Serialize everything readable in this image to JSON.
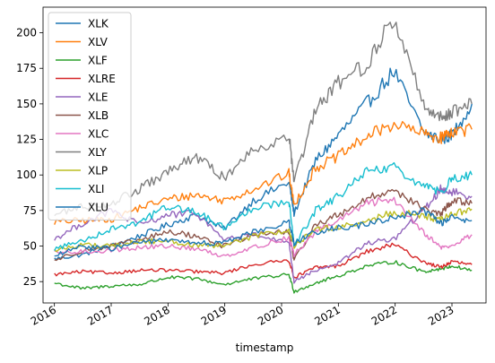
{
  "chart_data": {
    "type": "line",
    "title": "",
    "xlabel": "timestamp",
    "ylabel": "",
    "xlim": [
      2015.8,
      2023.6
    ],
    "ylim": [
      10,
      218
    ],
    "yticks": [
      25,
      50,
      75,
      100,
      125,
      150,
      175,
      200
    ],
    "xticks": [
      {
        "value": 2016,
        "label": "2016"
      },
      {
        "value": 2017,
        "label": "2017"
      },
      {
        "value": 2018,
        "label": "2018"
      },
      {
        "value": 2019,
        "label": "2019"
      },
      {
        "value": 2020,
        "label": "2020"
      },
      {
        "value": 2021,
        "label": "2021"
      },
      {
        "value": 2022,
        "label": "2022"
      },
      {
        "value": 2023,
        "label": "2023"
      }
    ],
    "legend_position": "upper-left",
    "grid": false,
    "series": [
      {
        "name": "XLK",
        "color": "#1f77b4",
        "x": [
          2016.0,
          2016.5,
          2017.0,
          2017.5,
          2018.0,
          2018.5,
          2018.98,
          2019.5,
          2020.13,
          2020.22,
          2020.6,
          2021.0,
          2021.5,
          2021.98,
          2022.5,
          2022.8,
          2023.0,
          2023.35
        ],
        "y": [
          41,
          44,
          50,
          57,
          65,
          72,
          62,
          82,
          95,
          73,
          110,
          128,
          150,
          173,
          130,
          125,
          128,
          150
        ]
      },
      {
        "name": "XLV",
        "color": "#ff7f0e",
        "x": [
          2016.0,
          2016.5,
          2017.0,
          2017.5,
          2018.0,
          2018.5,
          2018.98,
          2019.5,
          2020.13,
          2020.22,
          2020.6,
          2021.0,
          2021.5,
          2021.98,
          2022.5,
          2022.8,
          2023.0,
          2023.35
        ],
        "y": [
          67,
          68,
          69,
          77,
          83,
          86,
          82,
          90,
          101,
          79,
          105,
          113,
          127,
          136,
          129,
          126,
          131,
          132
        ]
      },
      {
        "name": "XLF",
        "color": "#2ca02c",
        "x": [
          2016.0,
          2016.5,
          2017.0,
          2017.5,
          2018.0,
          2018.5,
          2018.98,
          2019.5,
          2020.13,
          2020.22,
          2020.6,
          2021.0,
          2021.5,
          2021.98,
          2022.5,
          2022.8,
          2023.0,
          2023.35
        ],
        "y": [
          24,
          20,
          22,
          23,
          28,
          27,
          23,
          27,
          30,
          18,
          24,
          29,
          36,
          39,
          32,
          34,
          36,
          33
        ]
      },
      {
        "name": "XLRE",
        "color": "#d62728",
        "x": [
          2016.0,
          2016.5,
          2017.0,
          2017.5,
          2018.0,
          2018.5,
          2018.98,
          2019.5,
          2020.13,
          2020.22,
          2020.6,
          2021.0,
          2021.5,
          2021.98,
          2022.5,
          2022.8,
          2023.0,
          2023.35
        ],
        "y": [
          30,
          32,
          31,
          33,
          33,
          32,
          31,
          37,
          40,
          28,
          35,
          36,
          46,
          51,
          39,
          35,
          39,
          37
        ]
      },
      {
        "name": "XLE",
        "color": "#9467bd",
        "x": [
          2016.0,
          2016.5,
          2017.0,
          2017.5,
          2018.0,
          2018.5,
          2018.98,
          2019.5,
          2020.13,
          2020.22,
          2020.6,
          2021.0,
          2021.5,
          2021.98,
          2022.5,
          2022.8,
          2023.0,
          2023.35
        ],
        "y": [
          55,
          66,
          75,
          65,
          72,
          73,
          55,
          58,
          52,
          25,
          33,
          38,
          52,
          55,
          75,
          90,
          88,
          85
        ]
      },
      {
        "name": "XLB",
        "color": "#8c564b",
        "x": [
          2016.0,
          2016.5,
          2017.0,
          2017.5,
          2018.0,
          2018.5,
          2018.98,
          2019.5,
          2020.13,
          2020.22,
          2020.6,
          2021.0,
          2021.5,
          2021.98,
          2022.5,
          2022.8,
          2023.0,
          2023.35
        ],
        "y": [
          40,
          47,
          50,
          54,
          60,
          57,
          50,
          58,
          60,
          40,
          65,
          72,
          83,
          90,
          76,
          72,
          82,
          80
        ]
      },
      {
        "name": "XLC",
        "color": "#e377c2",
        "x": [
          2016.0,
          2016.5,
          2017.0,
          2017.5,
          2018.0,
          2018.5,
          2018.98,
          2019.5,
          2020.13,
          2020.22,
          2020.6,
          2021.0,
          2021.5,
          2021.98,
          2022.5,
          2022.8,
          2023.0,
          2023.35
        ],
        "y": [
          45,
          46,
          47,
          49,
          50,
          48,
          43,
          49,
          56,
          44,
          60,
          68,
          80,
          83,
          60,
          49,
          50,
          58
        ]
      },
      {
        "name": "XLY",
        "color": "#7f7f7f",
        "x": [
          2016.0,
          2016.5,
          2017.0,
          2017.5,
          2018.0,
          2018.5,
          2018.98,
          2019.5,
          2020.13,
          2020.22,
          2020.6,
          2021.0,
          2021.5,
          2021.98,
          2022.5,
          2022.8,
          2023.0,
          2023.35
        ],
        "y": [
          72,
          78,
          80,
          90,
          102,
          113,
          98,
          118,
          128,
          95,
          145,
          165,
          178,
          210,
          150,
          140,
          145,
          150
        ]
      },
      {
        "name": "XLP",
        "color": "#bcbd22",
        "x": [
          2016.0,
          2016.5,
          2017.0,
          2017.5,
          2018.0,
          2018.5,
          2018.98,
          2019.5,
          2020.13,
          2020.22,
          2020.6,
          2021.0,
          2021.5,
          2021.98,
          2022.5,
          2022.8,
          2023.0,
          2023.35
        ],
        "y": [
          47,
          51,
          50,
          53,
          54,
          50,
          50,
          57,
          61,
          50,
          62,
          63,
          67,
          74,
          71,
          68,
          73,
          76
        ]
      },
      {
        "name": "XLI",
        "color": "#17becf",
        "x": [
          2016.0,
          2016.5,
          2017.0,
          2017.5,
          2018.0,
          2018.5,
          2018.98,
          2019.5,
          2020.13,
          2020.22,
          2020.6,
          2021.0,
          2021.5,
          2021.98,
          2022.5,
          2022.8,
          2023.0,
          2023.35
        ],
        "y": [
          48,
          54,
          62,
          67,
          78,
          74,
          63,
          77,
          82,
          50,
          75,
          85,
          102,
          105,
          92,
          88,
          97,
          100
        ]
      },
      {
        "name": "XLU",
        "color": "#1f77b4",
        "x": [
          2016.0,
          2016.5,
          2017.0,
          2017.5,
          2018.0,
          2018.5,
          2018.98,
          2019.5,
          2020.13,
          2020.22,
          2020.6,
          2021.0,
          2021.5,
          2021.98,
          2022.5,
          2022.8,
          2023.0,
          2023.35
        ],
        "y": [
          43,
          50,
          48,
          53,
          54,
          52,
          52,
          60,
          67,
          52,
          60,
          63,
          65,
          70,
          75,
          66,
          70,
          68
        ]
      }
    ]
  }
}
